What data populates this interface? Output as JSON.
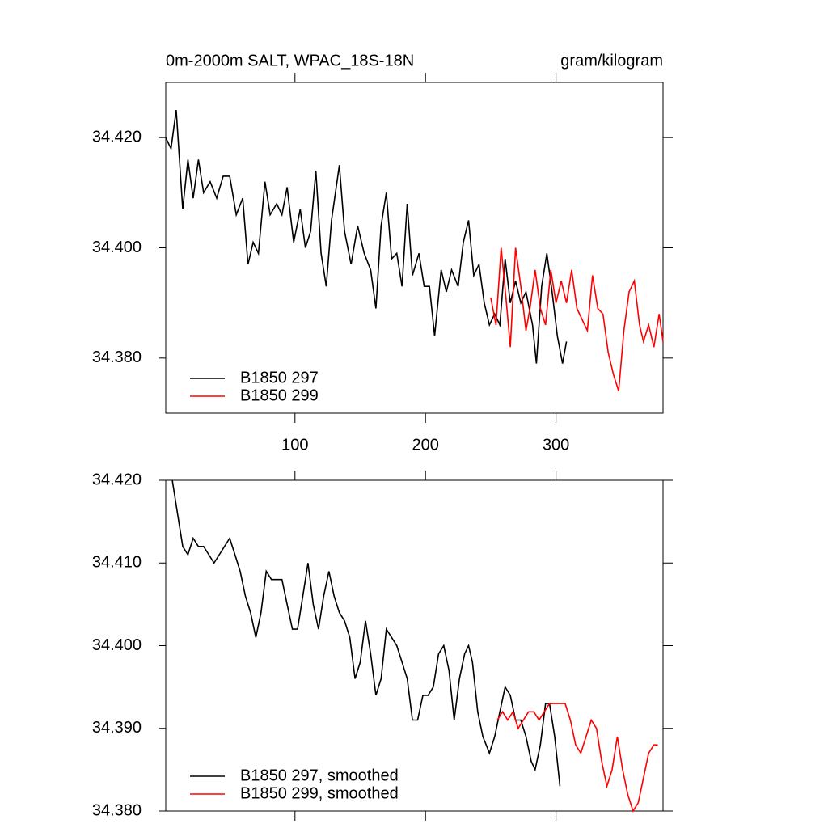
{
  "chart_data": [
    {
      "type": "line",
      "title": "0m-2000m SALT, WPAC_18S-18N",
      "units": "gram/kilogram",
      "xlim": [
        1,
        382
      ],
      "xticks": [
        100,
        200,
        300
      ],
      "xtick_labels": true,
      "ylim": [
        34.37,
        34.43
      ],
      "yticks": [
        {
          "value": 34.38,
          "label": "34.380"
        },
        {
          "value": 34.4,
          "label": "34.400"
        },
        {
          "value": 34.42,
          "label": "34.420"
        }
      ],
      "legend": "lower-left",
      "series": [
        {
          "name": "B1850 297",
          "color": "#000000",
          "x": [
            1,
            5,
            9,
            14,
            18,
            22,
            26,
            30,
            35,
            40,
            45,
            50,
            55,
            60,
            64,
            68,
            72,
            77,
            81,
            86,
            90,
            94,
            99,
            104,
            108,
            112,
            116,
            120,
            124,
            128,
            134,
            138,
            143,
            148,
            153,
            158,
            162,
            166,
            170,
            174,
            178,
            182,
            186,
            190,
            195,
            199,
            203,
            207,
            212,
            216,
            220,
            225,
            229,
            233,
            237,
            241,
            245,
            249,
            253,
            257,
            261,
            265,
            269,
            273,
            277,
            282,
            285,
            289,
            293,
            297,
            301,
            305,
            308
          ],
          "values": [
            34.42,
            34.418,
            34.425,
            34.407,
            34.416,
            34.409,
            34.416,
            34.41,
            34.412,
            34.409,
            34.413,
            34.413,
            34.406,
            34.409,
            34.397,
            34.401,
            34.399,
            34.412,
            34.406,
            34.408,
            34.406,
            34.411,
            34.401,
            34.407,
            34.4,
            34.403,
            34.414,
            34.399,
            34.393,
            34.405,
            34.415,
            34.403,
            34.397,
            34.404,
            34.399,
            34.396,
            34.389,
            34.404,
            34.41,
            34.398,
            34.399,
            34.393,
            34.408,
            34.395,
            34.399,
            34.393,
            34.393,
            34.384,
            34.396,
            34.392,
            34.396,
            34.393,
            34.401,
            34.405,
            34.395,
            34.397,
            34.39,
            34.386,
            34.388,
            34.386,
            34.398,
            34.39,
            34.394,
            34.39,
            34.392,
            34.386,
            34.379,
            34.393,
            34.399,
            34.392,
            34.384,
            34.379,
            34.383
          ]
        },
        {
          "name": "B1850 299",
          "color": "#ff0000",
          "x": [
            250,
            254,
            258,
            262,
            265,
            269,
            273,
            277,
            280,
            284,
            288,
            292,
            296,
            300,
            304,
            308,
            312,
            316,
            320,
            324,
            328,
            332,
            336,
            340,
            344,
            348,
            352,
            356,
            360,
            364,
            367,
            371,
            375,
            379,
            382
          ],
          "values": [
            34.391,
            34.386,
            34.4,
            34.39,
            34.382,
            34.4,
            34.393,
            34.385,
            34.389,
            34.396,
            34.389,
            34.386,
            34.396,
            34.39,
            34.394,
            34.39,
            34.396,
            34.389,
            34.387,
            34.385,
            34.395,
            34.389,
            34.388,
            34.381,
            34.377,
            34.374,
            34.385,
            34.392,
            34.394,
            34.386,
            34.383,
            34.386,
            34.382,
            34.388,
            34.383
          ]
        }
      ]
    },
    {
      "type": "line",
      "xlim": [
        1,
        382
      ],
      "xticks": [
        100,
        200,
        300
      ],
      "xtick_labels": false,
      "ylim": [
        34.38,
        34.42
      ],
      "yticks": [
        {
          "value": 34.38,
          "label": "34.380"
        },
        {
          "value": 34.39,
          "label": "34.390"
        },
        {
          "value": 34.4,
          "label": "34.400"
        },
        {
          "value": 34.41,
          "label": "34.410"
        },
        {
          "value": 34.42,
          "label": "34.420"
        }
      ],
      "legend": "lower-left",
      "series": [
        {
          "name": "B1850 297, smoothed",
          "color": "#000000",
          "x": [
            6,
            10,
            14,
            18,
            22,
            26,
            30,
            34,
            38,
            42,
            46,
            50,
            54,
            58,
            62,
            66,
            70,
            74,
            78,
            82,
            86,
            90,
            94,
            98,
            102,
            106,
            110,
            114,
            118,
            122,
            126,
            130,
            134,
            138,
            142,
            146,
            150,
            154,
            158,
            162,
            166,
            170,
            174,
            178,
            182,
            186,
            190,
            194,
            198,
            202,
            206,
            210,
            214,
            218,
            222,
            226,
            230,
            233,
            236,
            240,
            244,
            249,
            253,
            257,
            261,
            265,
            269,
            273,
            277,
            281,
            284,
            288,
            292,
            295,
            299,
            303
          ],
          "values": [
            34.42,
            34.416,
            34.412,
            34.411,
            34.413,
            34.412,
            34.412,
            34.411,
            34.41,
            34.411,
            34.412,
            34.413,
            34.411,
            34.409,
            34.406,
            34.404,
            34.401,
            34.404,
            34.409,
            34.408,
            34.408,
            34.408,
            34.405,
            34.402,
            34.402,
            34.406,
            34.41,
            34.405,
            34.402,
            34.406,
            34.409,
            34.406,
            34.404,
            34.403,
            34.401,
            34.396,
            34.398,
            34.403,
            34.399,
            34.394,
            34.396,
            34.402,
            34.401,
            34.4,
            34.398,
            34.396,
            34.391,
            34.391,
            34.394,
            34.394,
            34.395,
            34.399,
            34.4,
            34.397,
            34.391,
            34.396,
            34.399,
            34.4,
            34.398,
            34.392,
            34.389,
            34.387,
            34.389,
            34.392,
            34.395,
            34.394,
            34.391,
            34.391,
            34.389,
            34.386,
            34.385,
            34.388,
            34.393,
            34.393,
            34.389,
            34.383
          ]
        },
        {
          "name": "B1850 299, smoothed",
          "color": "#ff0000",
          "x": [
            255,
            259,
            263,
            267,
            271,
            275,
            279,
            283,
            287,
            291,
            295,
            299,
            303,
            307,
            311,
            315,
            319,
            323,
            327,
            331,
            335,
            339,
            343,
            347,
            351,
            355,
            359,
            363,
            367,
            371,
            375,
            378
          ],
          "values": [
            34.391,
            34.392,
            34.391,
            34.392,
            34.39,
            34.391,
            34.392,
            34.392,
            34.391,
            34.392,
            34.393,
            34.393,
            34.393,
            34.393,
            34.391,
            34.388,
            34.387,
            34.389,
            34.391,
            34.39,
            34.386,
            34.383,
            34.385,
            34.389,
            34.385,
            34.382,
            34.38,
            34.381,
            34.384,
            34.387,
            34.388,
            34.388
          ]
        }
      ]
    }
  ]
}
